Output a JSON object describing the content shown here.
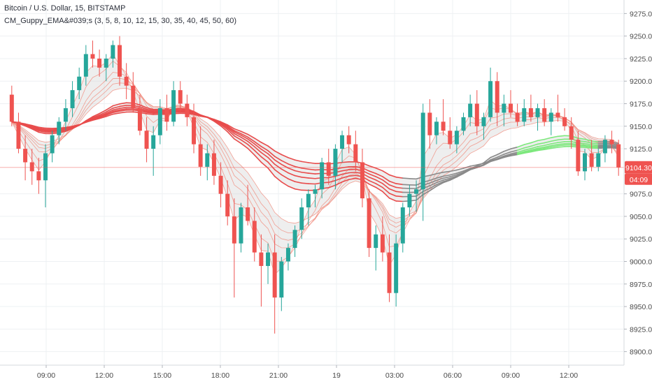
{
  "header": {
    "symbol_line": "Bitcoin / U.S. Dollar, 15, BITSTAMP",
    "indicator_line": "CM_Guppy_EMA&#039;s (3, 5, 8, 10, 12, 15, 30, 35, 40, 45, 50, 60)"
  },
  "colors": {
    "up": "#26a69a",
    "down": "#ef5350",
    "slow_ribbon_red": "#e84c4c",
    "ribbon_gray": "#8a8a8a",
    "ribbon_green": "#7de87d",
    "grid": "#eef0f3",
    "axis_text": "#4a4a4a",
    "price_label_bg": "#ef5350"
  },
  "price_axis": {
    "ticks": [
      "9275.00",
      "9250.00",
      "9225.00",
      "9200.00",
      "9175.00",
      "9150.00",
      "9125.00",
      "9075.00",
      "9050.00",
      "9025.00",
      "9000.00",
      "8975.00",
      "8950.00",
      "8925.00",
      "8900.00"
    ],
    "current_price_label": "9104.30",
    "countdown_label": "04:09"
  },
  "time_axis": {
    "ticks": [
      "09:00",
      "12:00",
      "15:00",
      "18:00",
      "21:00",
      "19",
      "03:00",
      "06:00",
      "09:00",
      "12:00"
    ]
  },
  "chart_data": {
    "type": "candlestick",
    "title": "Bitcoin / U.S. Dollar, 15, BITSTAMP",
    "interval": "15",
    "ylim": [
      8885,
      9290
    ],
    "current_price": 9104.3,
    "candles": [
      [
        9185,
        9195,
        9150,
        9155
      ],
      [
        9155,
        9165,
        9120,
        9125
      ],
      [
        9125,
        9140,
        9090,
        9110
      ],
      [
        9110,
        9125,
        9085,
        9100
      ],
      [
        9100,
        9115,
        9075,
        9090
      ],
      [
        9090,
        9130,
        9060,
        9120
      ],
      [
        9120,
        9145,
        9110,
        9140
      ],
      [
        9140,
        9160,
        9130,
        9155
      ],
      [
        9155,
        9180,
        9145,
        9170
      ],
      [
        9170,
        9200,
        9160,
        9190
      ],
      [
        9190,
        9215,
        9180,
        9205
      ],
      [
        9205,
        9240,
        9195,
        9230
      ],
      [
        9230,
        9245,
        9215,
        9225
      ],
      [
        9225,
        9235,
        9205,
        9215
      ],
      [
        9215,
        9230,
        9200,
        9225
      ],
      [
        9225,
        9245,
        9215,
        9240
      ],
      [
        9240,
        9250,
        9195,
        9205
      ],
      [
        9205,
        9220,
        9180,
        9195
      ],
      [
        9195,
        9210,
        9165,
        9170
      ],
      [
        9170,
        9185,
        9140,
        9145
      ],
      [
        9145,
        9160,
        9110,
        9125
      ],
      [
        9125,
        9150,
        9095,
        9140
      ],
      [
        9140,
        9180,
        9130,
        9170
      ],
      [
        9170,
        9185,
        9145,
        9155
      ],
      [
        9155,
        9200,
        9150,
        9190
      ],
      [
        9190,
        9200,
        9165,
        9175
      ],
      [
        9175,
        9185,
        9150,
        9160
      ],
      [
        9160,
        9175,
        9120,
        9130
      ],
      [
        9130,
        9150,
        9095,
        9105
      ],
      [
        9105,
        9130,
        9090,
        9120
      ],
      [
        9120,
        9135,
        9085,
        9095
      ],
      [
        9095,
        9110,
        9060,
        9075
      ],
      [
        9075,
        9090,
        9040,
        9050
      ],
      [
        9050,
        9070,
        8960,
        9020
      ],
      [
        9020,
        9065,
        9010,
        9060
      ],
      [
        9060,
        9085,
        9040,
        9045
      ],
      [
        9045,
        9060,
        9000,
        9010
      ],
      [
        9010,
        9030,
        8950,
        8995
      ],
      [
        8995,
        9020,
        8975,
        9010
      ],
      [
        9010,
        9030,
        8920,
        8960
      ],
      [
        8960,
        9005,
        8945,
        9000
      ],
      [
        9000,
        9020,
        8990,
        9015
      ],
      [
        9015,
        9040,
        9005,
        9035
      ],
      [
        9035,
        9070,
        9025,
        9060
      ],
      [
        9060,
        9080,
        9040,
        9075
      ],
      [
        9075,
        9085,
        9060,
        9080
      ],
      [
        9080,
        9115,
        9070,
        9110
      ],
      [
        9110,
        9125,
        9085,
        9095
      ],
      [
        9095,
        9130,
        9080,
        9125
      ],
      [
        9125,
        9145,
        9110,
        9140
      ],
      [
        9140,
        9150,
        9120,
        9130
      ],
      [
        9130,
        9145,
        9100,
        9110
      ],
      [
        9110,
        9125,
        9060,
        9070
      ],
      [
        9070,
        9080,
        9005,
        9015
      ],
      [
        9015,
        9040,
        8990,
        9030
      ],
      [
        9030,
        9050,
        9000,
        9010
      ],
      [
        9010,
        9030,
        8955,
        8965
      ],
      [
        8965,
        9030,
        8950,
        9020
      ],
      [
        9020,
        9065,
        9010,
        9060
      ],
      [
        9060,
        9085,
        9050,
        9075
      ],
      [
        9075,
        9090,
        9055,
        9080
      ],
      [
        9080,
        9175,
        9045,
        9165
      ],
      [
        9165,
        9180,
        9125,
        9140
      ],
      [
        9140,
        9160,
        9130,
        9155
      ],
      [
        9155,
        9180,
        9140,
        9145
      ],
      [
        9145,
        9160,
        9125,
        9130
      ],
      [
        9130,
        9150,
        9120,
        9145
      ],
      [
        9145,
        9165,
        9140,
        9160
      ],
      [
        9160,
        9185,
        9150,
        9175
      ],
      [
        9175,
        9190,
        9140,
        9150
      ],
      [
        9150,
        9165,
        9135,
        9160
      ],
      [
        9160,
        9215,
        9155,
        9200
      ],
      [
        9200,
        9210,
        9150,
        9165
      ],
      [
        9165,
        9185,
        9150,
        9175
      ],
      [
        9175,
        9190,
        9160,
        9165
      ],
      [
        9165,
        9175,
        9150,
        9155
      ],
      [
        9155,
        9180,
        9150,
        9170
      ],
      [
        9170,
        9185,
        9155,
        9160
      ],
      [
        9160,
        9175,
        9145,
        9170
      ],
      [
        9170,
        9180,
        9150,
        9155
      ],
      [
        9155,
        9170,
        9140,
        9165
      ],
      [
        9165,
        9185,
        9155,
        9160
      ],
      [
        9160,
        9170,
        9145,
        9150
      ],
      [
        9150,
        9160,
        9125,
        9135
      ],
      [
        9135,
        9145,
        9095,
        9100
      ],
      [
        9100,
        9125,
        9090,
        9120
      ],
      [
        9120,
        9135,
        9100,
        9105
      ],
      [
        9105,
        9125,
        9100,
        9120
      ],
      [
        9120,
        9140,
        9110,
        9135
      ],
      [
        9135,
        9145,
        9120,
        9130
      ],
      [
        9130,
        9135,
        9095,
        9104.3
      ]
    ],
    "guppy_fast_emas": [
      3,
      5,
      8,
      10,
      12,
      15
    ],
    "guppy_slow_emas": [
      30,
      35,
      40,
      45,
      50,
      60
    ]
  }
}
